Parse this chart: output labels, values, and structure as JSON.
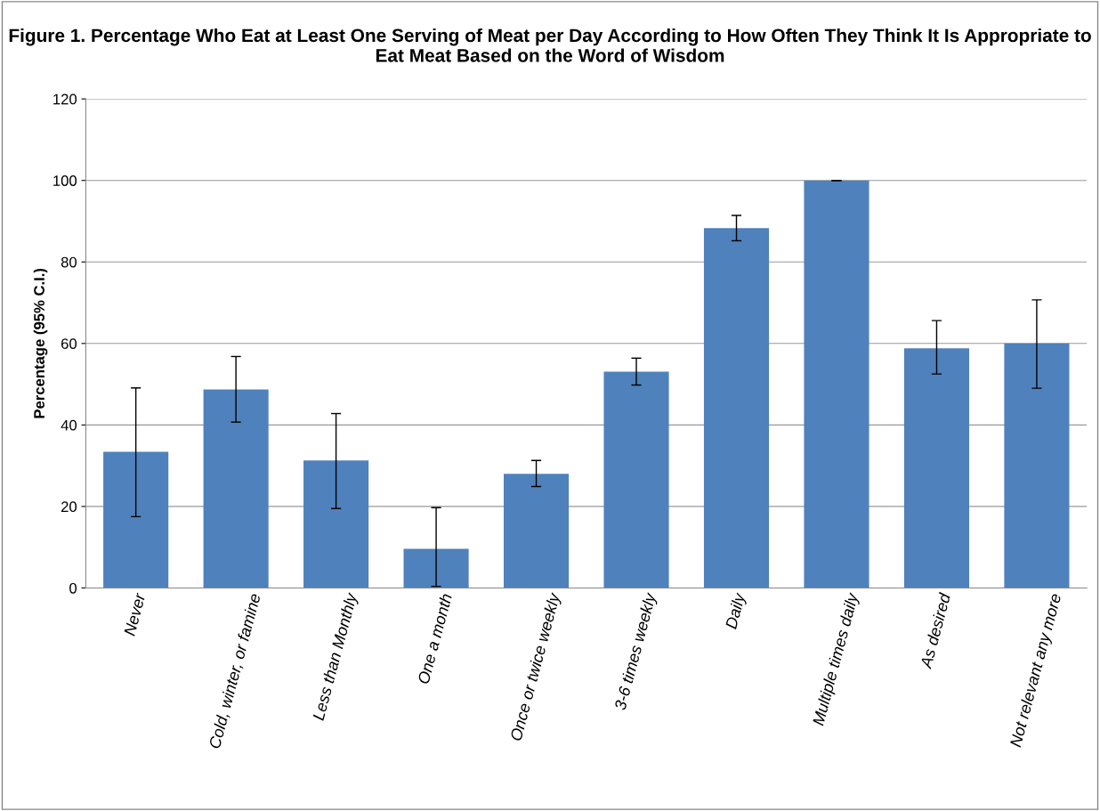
{
  "chart_data": {
    "type": "bar",
    "title": "Figure 1. Percentage Who Eat at Least One Serving of Meat per Day According to How Often They Think It Is Appropriate to Eat Meat Based on the Word of Wisdom",
    "ylabel": "Percentage (95% C.I.)",
    "categories": [
      "Never",
      "Cold, winter, or famine",
      "Less than Monthly",
      "One a month",
      "Once or twice weekly",
      "3-6 times weekly",
      "Daily",
      "Multiple times daily",
      "As desired",
      "Not relevant any more"
    ],
    "values": [
      33.4,
      48.7,
      31.3,
      9.6,
      28,
      53.1,
      88.3,
      100,
      58.8,
      60
    ],
    "errors": [
      [
        17.5,
        49.1
      ],
      [
        40.7,
        56.8
      ],
      [
        19.5,
        42.8
      ],
      [
        0.4,
        19.7
      ],
      [
        24.9,
        31.3
      ],
      [
        49.8,
        56.4
      ],
      [
        85.2,
        91.4
      ],
      [
        100,
        100
      ],
      [
        52.5,
        65.6
      ],
      [
        49,
        70.7
      ]
    ],
    "color": "#4f81bd",
    "ylim": [
      0,
      120
    ],
    "yticks": [
      0,
      20,
      40,
      60,
      80,
      100,
      120
    ],
    "grid": "y"
  }
}
